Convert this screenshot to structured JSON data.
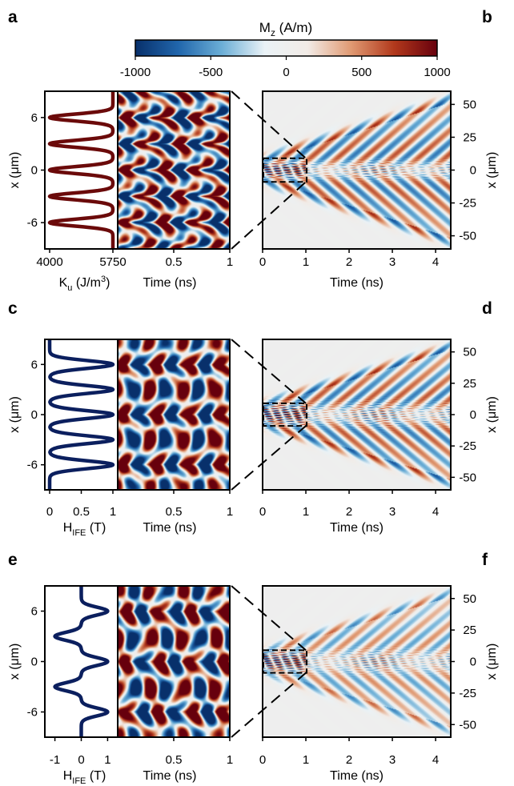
{
  "colorbar": {
    "label_main": "M",
    "label_sub": "z",
    "label_unit": " (A/m)",
    "ticks": [
      "-1000",
      "-500",
      "0",
      "500",
      "1000"
    ],
    "tick_values": [
      -1000,
      -500,
      0,
      500,
      1000
    ],
    "range": [
      -1000,
      1000
    ],
    "colors": [
      "#08306b",
      "#2166ac",
      "#6baed6",
      "#eaf2f6",
      "#f2ebe6",
      "#e09a73",
      "#b2391c",
      "#67000d"
    ]
  },
  "chart_data": [
    {
      "panel": "a",
      "type": "line",
      "xlabel_main": "K",
      "xlabel_sub": "u",
      "xlabel_unit": " (J/m",
      "xlabel_sup": "3",
      "xlabel_close": ")",
      "ylabel": "x (μm)",
      "xticks": [
        "4000",
        "5750"
      ],
      "xtick_values": [
        4000,
        5750
      ],
      "yticks": [
        "6",
        "0",
        "-6"
      ],
      "ytick_values": [
        6,
        0,
        -6
      ],
      "xlim": [
        4000,
        5750
      ],
      "ylim": [
        -9,
        9
      ],
      "profile": "Ku",
      "color": "#6b0a0a"
    },
    {
      "panel": "a-zoom",
      "type": "heatmap",
      "xlabel": "Time (ns)",
      "xticks": [
        "0.5",
        "1"
      ],
      "xtick_values": [
        0.5,
        1
      ],
      "xlim": [
        0,
        1
      ],
      "ylim": [
        -9,
        9
      ],
      "pattern": "a"
    },
    {
      "panel": "b",
      "type": "heatmap",
      "xlabel": "Time (ns)",
      "ylabel": "x (μm)",
      "xticks": [
        "0",
        "1",
        "2",
        "3",
        "4"
      ],
      "xtick_values": [
        0,
        1,
        2,
        3,
        4
      ],
      "yticks": [
        "50",
        "25",
        "0",
        "-25",
        "-50"
      ],
      "ytick_values": [
        50,
        25,
        0,
        -25,
        -50
      ],
      "xlim": [
        0,
        4.35
      ],
      "ylim": [
        -60,
        60
      ],
      "pattern": "a"
    },
    {
      "panel": "c",
      "type": "line",
      "xlabel_main": "H",
      "xlabel_sub": "IFE",
      "xlabel_unit": " (T)",
      "ylabel": "x (μm)",
      "xticks": [
        "0",
        "0.5",
        "1"
      ],
      "xtick_values": [
        0,
        0.5,
        1
      ],
      "yticks": [
        "6",
        "0",
        "-6"
      ],
      "ytick_values": [
        6,
        0,
        -6
      ],
      "xlim": [
        0,
        1
      ],
      "ylim": [
        -9,
        9
      ],
      "profile": "Hc",
      "color": "#0b1f5e"
    },
    {
      "panel": "c-zoom",
      "type": "heatmap",
      "xlabel": "Time (ns)",
      "xticks": [
        "0.5",
        "1"
      ],
      "xtick_values": [
        0.5,
        1
      ],
      "xlim": [
        0,
        1
      ],
      "ylim": [
        -9,
        9
      ],
      "pattern": "c"
    },
    {
      "panel": "d",
      "type": "heatmap",
      "xlabel": "Time (ns)",
      "ylabel": "x (μm)",
      "xticks": [
        "0",
        "1",
        "2",
        "3",
        "4"
      ],
      "xtick_values": [
        0,
        1,
        2,
        3,
        4
      ],
      "yticks": [
        "50",
        "25",
        "0",
        "-25",
        "-50"
      ],
      "ytick_values": [
        50,
        25,
        0,
        -25,
        -50
      ],
      "xlim": [
        0,
        4.35
      ],
      "ylim": [
        -60,
        60
      ],
      "pattern": "c"
    },
    {
      "panel": "e",
      "type": "line",
      "xlabel_main": "H",
      "xlabel_sub": "IFE",
      "xlabel_unit": " (T)",
      "ylabel": "x (μm)",
      "xticks": [
        "-1",
        "0",
        "1"
      ],
      "xtick_values": [
        -1,
        0,
        1
      ],
      "yticks": [
        "6",
        "0",
        "-6"
      ],
      "ytick_values": [
        6,
        0,
        -6
      ],
      "xlim": [
        -1.2,
        1.2
      ],
      "ylim": [
        -9,
        9
      ],
      "profile": "He",
      "color": "#0b1f5e"
    },
    {
      "panel": "e-zoom",
      "type": "heatmap",
      "xlabel": "Time (ns)",
      "xticks": [
        "0.5",
        "1"
      ],
      "xtick_values": [
        0.5,
        1
      ],
      "xlim": [
        0,
        1
      ],
      "ylim": [
        -9,
        9
      ],
      "pattern": "e"
    },
    {
      "panel": "f",
      "type": "heatmap",
      "xlabel": "Time (ns)",
      "ylabel": "x (μm)",
      "xticks": [
        "0",
        "1",
        "2",
        "3",
        "4"
      ],
      "xtick_values": [
        0,
        1,
        2,
        3,
        4
      ],
      "yticks": [
        "50",
        "25",
        "0",
        "-25",
        "-50"
      ],
      "ytick_values": [
        50,
        25,
        0,
        -25,
        -50
      ],
      "xlim": [
        0,
        4.35
      ],
      "ylim": [
        -60,
        60
      ],
      "pattern": "e"
    }
  ],
  "panel_letters": [
    "a",
    "b",
    "c",
    "d",
    "e",
    "f"
  ]
}
